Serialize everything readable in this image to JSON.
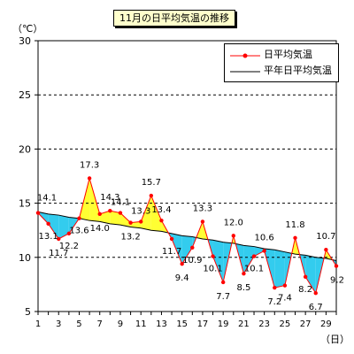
{
  "chart_data": {
    "type": "line",
    "title": "11月の日平均気温の推移",
    "y_unit": "（℃）",
    "x_unit": "（日）",
    "ylim": [
      5,
      30
    ],
    "y_ticks": [
      5,
      10,
      15,
      20,
      25,
      30
    ],
    "xlim": [
      1,
      30
    ],
    "x_ticks": [
      1,
      3,
      5,
      7,
      9,
      11,
      13,
      15,
      17,
      19,
      21,
      23,
      25,
      27,
      29
    ],
    "grid": "horizontal dashed",
    "legend_position": "top-right",
    "series": [
      {
        "name": "日平均気温",
        "color": "#ff0000",
        "x": [
          1,
          2,
          3,
          4,
          5,
          6,
          7,
          8,
          9,
          10,
          11,
          12,
          13,
          14,
          15,
          16,
          17,
          18,
          19,
          20,
          21,
          22,
          23,
          24,
          25,
          26,
          27,
          28,
          29,
          30
        ],
        "values": [
          14.1,
          13.1,
          11.7,
          12.2,
          13.6,
          17.3,
          14.0,
          14.3,
          14.1,
          13.2,
          13.3,
          15.7,
          13.4,
          11.7,
          9.4,
          10.9,
          13.3,
          10.1,
          7.7,
          12.0,
          8.5,
          10.1,
          10.6,
          7.2,
          7.4,
          11.8,
          8.2,
          6.7,
          10.7,
          9.2
        ]
      },
      {
        "name": "平年日平均気温",
        "color": "#000000",
        "x": [
          1,
          2,
          3,
          4,
          5,
          6,
          7,
          8,
          9,
          10,
          11,
          12,
          13,
          14,
          15,
          16,
          17,
          18,
          19,
          20,
          21,
          22,
          23,
          24,
          25,
          26,
          27,
          28,
          29,
          30
        ],
        "values": [
          14.2,
          14.0,
          13.9,
          13.7,
          13.6,
          13.4,
          13.3,
          13.1,
          13.0,
          12.8,
          12.7,
          12.5,
          12.4,
          12.2,
          12.0,
          11.9,
          11.7,
          11.6,
          11.4,
          11.3,
          11.1,
          11.0,
          10.8,
          10.7,
          10.5,
          10.3,
          10.2,
          10.0,
          9.9,
          9.7
        ]
      }
    ],
    "data_labels": [
      "14.1",
      "13.1",
      "11.7",
      "12.2",
      "13.6",
      "17.3",
      "14.0",
      "14.3",
      "14.1",
      "13.2",
      "13.3",
      "15.7",
      "13.4",
      "11.7",
      "9.4",
      "10.9",
      "13.3",
      "10.1",
      "7.7",
      "12.0",
      "8.5",
      "10.1",
      "10.6",
      "7.2",
      "7.4",
      "11.8",
      "8.2",
      "6.7",
      "10.7",
      "9.2"
    ],
    "above_normal_fill": "#ffff33",
    "below_normal_fill": "#33ccee"
  }
}
